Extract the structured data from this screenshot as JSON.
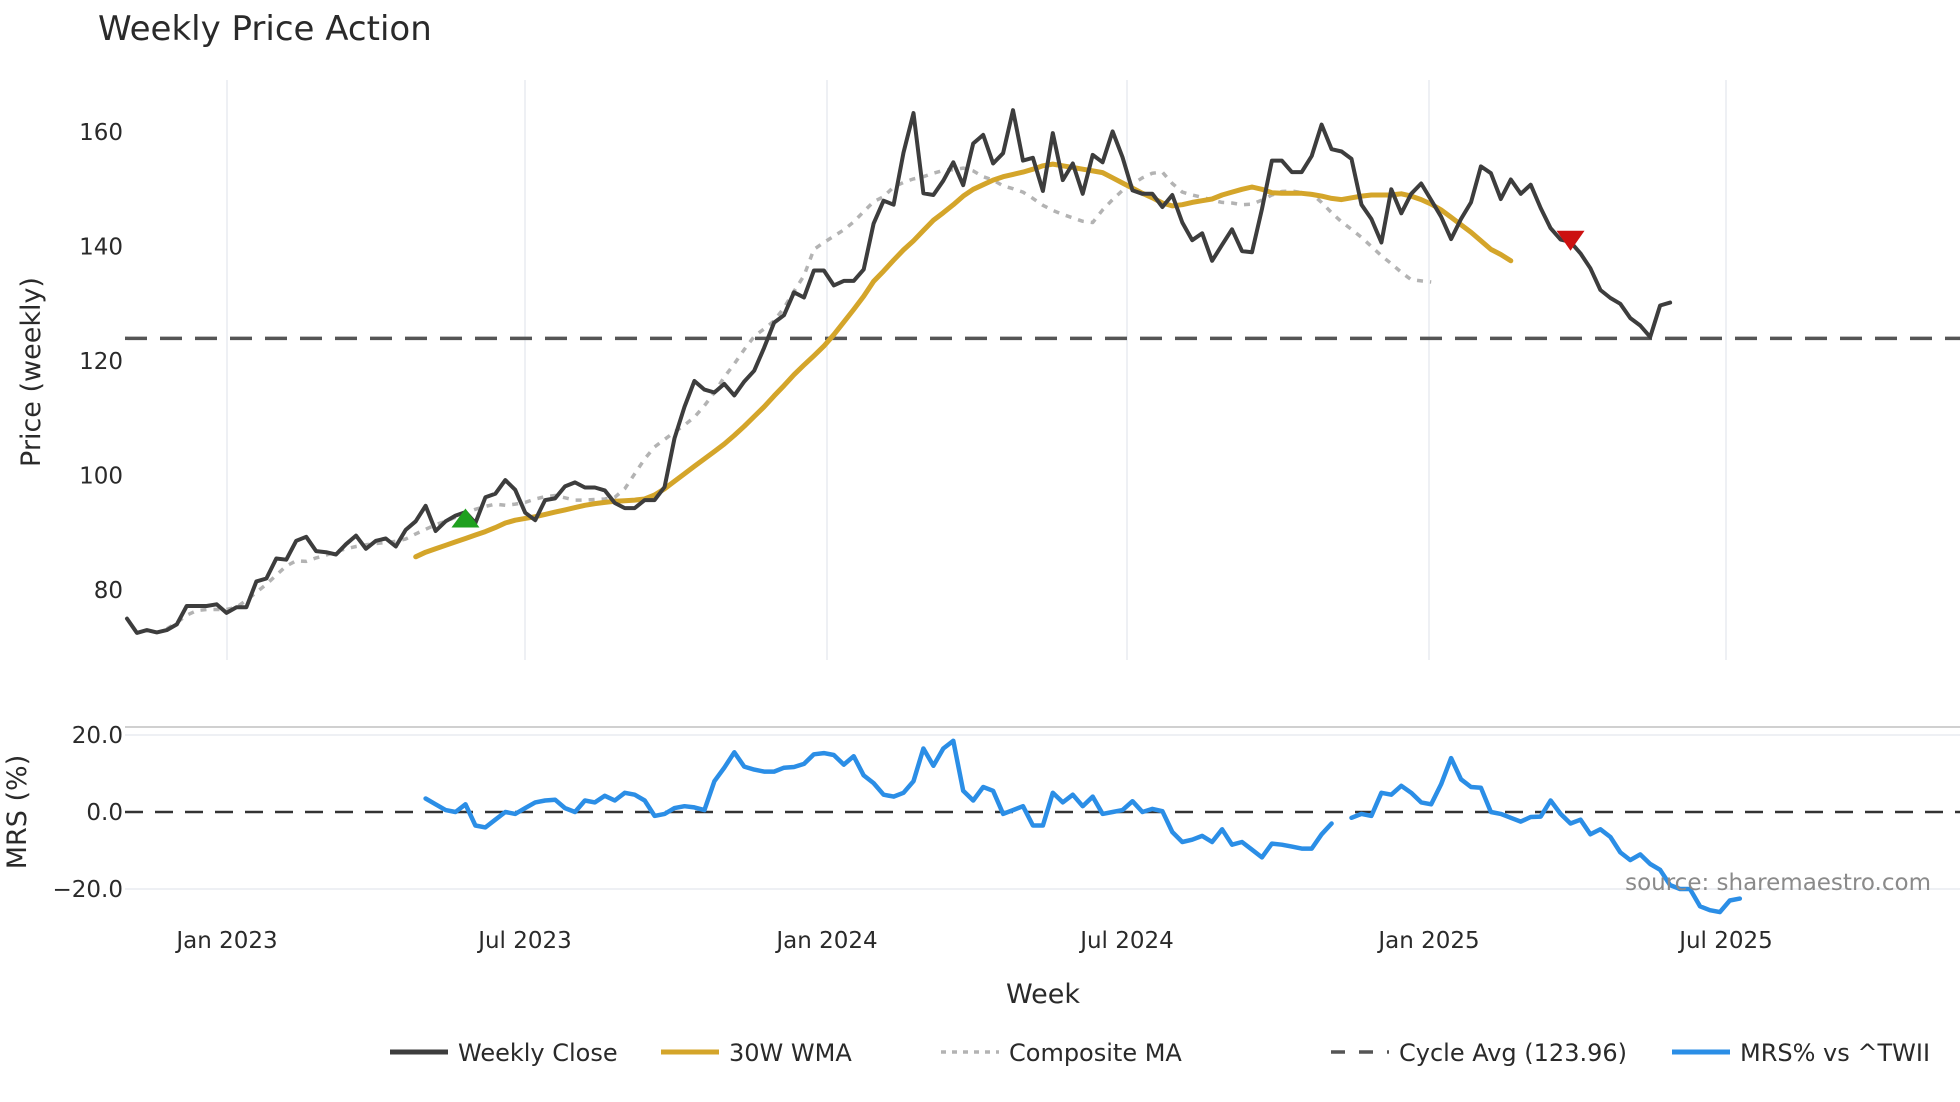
{
  "title": "Weekly Price Action",
  "source_label": "source: sharemaestro.com",
  "colors": {
    "close": "#3d3d3d",
    "wma": "#d4a52a",
    "composite": "#b3b3b3",
    "cycle": "#555555",
    "mrs": "#2b8ee6",
    "buy_marker": "#1fa01f",
    "sell_marker": "#cc1111",
    "grid": "#e8ecf0"
  },
  "legend": [
    {
      "key": "close",
      "label": "Weekly Close",
      "style": "solid"
    },
    {
      "key": "wma",
      "label": "30W WMA",
      "style": "solid"
    },
    {
      "key": "composite",
      "label": "Composite MA",
      "style": "dotted"
    },
    {
      "key": "cycle",
      "label": "Cycle Avg (123.96)",
      "style": "dashed"
    },
    {
      "key": "mrs",
      "label": "MRS% vs ^TWII",
      "style": "solid"
    }
  ],
  "chart_data": [
    {
      "type": "line",
      "title": "Weekly Price Action",
      "xlabel": "Week",
      "ylabel": "Price (weekly)",
      "ylim": [
        68,
        170
      ],
      "yticks": [
        80,
        100,
        120,
        140,
        160
      ],
      "xticks": [
        "Jan 2023",
        "Jul 2023",
        "Jan 2024",
        "Jul 2024",
        "Jan 2025",
        "Jul 2025"
      ],
      "grid": true,
      "reference_line": {
        "label": "Cycle Avg",
        "value": 123.96
      },
      "markers": [
        {
          "type": "buy",
          "shape": "triangle-up",
          "week_index": 34,
          "value": 92.5
        },
        {
          "type": "sell",
          "shape": "triangle-down",
          "week_index": 145,
          "value": 141
        }
      ],
      "series": [
        {
          "name": "Weekly Close",
          "start_index": 0,
          "values": [
            75,
            72.5,
            73,
            72.6,
            73,
            74,
            77.2,
            77.2,
            77.2,
            77.5,
            76,
            77,
            77,
            81.5,
            82,
            85.5,
            85.3,
            88.6,
            89.3,
            86.8,
            86.6,
            86.2,
            88,
            89.5,
            87.2,
            88.6,
            89,
            87.6,
            90.5,
            92,
            94.7,
            90.3,
            92,
            93,
            93.6,
            91.7,
            96.2,
            96.8,
            99.2,
            97.5,
            93.5,
            92.2,
            95.7,
            96,
            98.1,
            98.8,
            97.9,
            97.9,
            97.4,
            95.2,
            94.3,
            94.3,
            95.7,
            95.7,
            98,
            106.5,
            112,
            116.5,
            115,
            114.5,
            116,
            114,
            116.4,
            118.3,
            122.3,
            126.7,
            128,
            132,
            131.1,
            135.8,
            135.8,
            133.2,
            134,
            134,
            136,
            144,
            148,
            147.3,
            156.4,
            163.3,
            149.3,
            149,
            151.5,
            154.7,
            150.7,
            158,
            159.5,
            154.5,
            156.3,
            163.8,
            155,
            155.5,
            149.7,
            159.8,
            151.6,
            154.5,
            149.2,
            156,
            154.7,
            160.1,
            155.6,
            149.8,
            149.2,
            149.2,
            146.9,
            149,
            144.2,
            141.1,
            142.3,
            137.5,
            140.3,
            143,
            139.2,
            139,
            146.5,
            155,
            155,
            153,
            153,
            155.8,
            161.3,
            157,
            156.6,
            155.3,
            147.3,
            144.8,
            140.7,
            150,
            145.8,
            149.2,
            151,
            148.1,
            145.2,
            141.3,
            144.8,
            147.7,
            154,
            152.8,
            148.3,
            151.7,
            149.2,
            150.8,
            146.7,
            143.2,
            141.2,
            140.8,
            138.8,
            136.2,
            132.4,
            131,
            130,
            127.5,
            126.2,
            124.2,
            129.7,
            130.2
          ]
        },
        {
          "name": "30W WMA",
          "start_index": 29,
          "values": [
            85.8,
            86.6,
            87.2,
            87.8,
            88.4,
            89,
            89.6,
            90.2,
            90.9,
            91.7,
            92.2,
            92.5,
            92.8,
            93.2,
            93.6,
            94,
            94.4,
            94.8,
            95.1,
            95.3,
            95.5,
            95.6,
            95.7,
            95.9,
            96.6,
            97.7,
            99,
            100.3,
            101.6,
            102.9,
            104.2,
            105.5,
            107,
            108.6,
            110.3,
            112,
            113.9,
            115.7,
            117.6,
            119.3,
            120.9,
            122.6,
            124.6,
            126.8,
            129,
            131.3,
            133.9,
            135.7,
            137.6,
            139.4,
            141,
            142.8,
            144.6,
            145.9,
            147.3,
            148.8,
            150,
            150.8,
            151.6,
            152.2,
            152.6,
            153,
            153.5,
            154.1,
            154.4,
            154.1,
            153.8,
            153.5,
            153.2,
            152.9,
            152,
            151.1,
            150.2,
            149.3,
            148.5,
            147.6,
            147.1,
            147.3,
            147.7,
            148,
            148.3,
            149,
            149.5,
            150,
            150.4,
            150,
            149.4,
            149.3,
            149.3,
            149.3,
            149.1,
            148.8,
            148.4,
            148.2,
            148.5,
            148.8,
            149,
            149,
            149,
            149.2,
            148.8,
            148.2,
            147.4,
            146.4,
            145.1,
            143.8,
            142.5,
            141,
            139.5,
            138.6,
            137.5
          ]
        },
        {
          "name": "Composite MA",
          "start_index": 4,
          "values": [
            73.2,
            74.3,
            75.6,
            76.4,
            76.6,
            76.6,
            76.6,
            77,
            78.2,
            79.6,
            81,
            82.6,
            84.2,
            85.1,
            85,
            85.6,
            86.1,
            86.7,
            87.2,
            87.6,
            87.9,
            88.1,
            88.3,
            88.5,
            88.9,
            89.8,
            90.6,
            91.4,
            92,
            92.7,
            93.4,
            94.1,
            94.6,
            95,
            94.8,
            95,
            95.3,
            95.9,
            96.3,
            96.5,
            96.1,
            95.7,
            95.7,
            95.8,
            95.9,
            96.2,
            97.7,
            100.3,
            102.9,
            105,
            106.3,
            107.6,
            108.8,
            110.2,
            112.2,
            114.5,
            117.2,
            119.5,
            122,
            124.3,
            125.6,
            127,
            129.3,
            132.2,
            134.9,
            139.5,
            140.7,
            141.8,
            142.9,
            144.3,
            146.1,
            147.8,
            148.7,
            150.4,
            151.2,
            151.8,
            152.2,
            152.8,
            153.3,
            153.4,
            153.7,
            153.2,
            152.2,
            151.6,
            150.6,
            150.1,
            149.5,
            148.4,
            147.2,
            146.3,
            145.6,
            145,
            144.4,
            144.2,
            146.4,
            148.2,
            149.8,
            150.9,
            152,
            152.8,
            153,
            151,
            149.5,
            149,
            148.6,
            148.1,
            147.7,
            147.6,
            147.3,
            147.4,
            148.1,
            149,
            149.6,
            149.7,
            149.4,
            149.2,
            147.7,
            145.9,
            144.3,
            143,
            141.6,
            140,
            138.4,
            137,
            135.5,
            134.2,
            134,
            133.8
          ]
        },
        {
          "name": "Cycle Avg",
          "values": [
            123.96
          ]
        }
      ]
    },
    {
      "type": "line",
      "xlabel": "Week",
      "ylabel": "MRS (%)",
      "ylim": [
        -26,
        22
      ],
      "yticks": [
        -20.0,
        0.0,
        20.0
      ],
      "reference_line": {
        "value": 0.0
      },
      "series": [
        {
          "name": "MRS% vs ^TWII",
          "start_index": 30,
          "segments": [
            {
              "start_index": 30,
              "values": [
                3.5,
                2,
                0.5,
                0,
                2,
                -3.5,
                -4,
                -2,
                0,
                -0.5,
                1,
                2.5,
                3,
                3.2,
                1,
                0,
                3,
                2.5,
                4.2,
                3,
                5,
                4.5,
                3,
                -1,
                -0.5,
                1,
                1.5,
                1.2,
                0.5,
                8,
                11.5,
                15.5,
                11.8,
                11,
                10.5,
                10.5,
                11.5,
                11.7,
                12.5,
                15,
                15.3,
                14.8,
                12.3,
                14.5,
                9.5,
                7.5,
                4.5,
                4,
                5,
                8,
                16.5,
                12,
                16.5,
                18.5,
                5.5,
                3,
                6.5,
                5.5,
                -0.5,
                0.5,
                1.5,
                -3.5,
                -3.5,
                5,
                2.5,
                4.5,
                1.5,
                4,
                -0.5,
                0,
                0.5,
                2.8,
                0,
                0.8,
                0.2,
                -5.2,
                -7.8,
                -7.2,
                -6.2,
                -7.8,
                -4.5,
                -8.5,
                -7.8,
                -9.8,
                -11.8,
                -8.2,
                -8.5,
                -9,
                -9.5,
                -9.5,
                -5.8,
                -3
              ]
            },
            {
              "start_index": 123,
              "values": [
                -1.5,
                -0.5,
                -1,
                5,
                4.5,
                6.8,
                5,
                2.5,
                2,
                7.2,
                14,
                8.5,
                6.5,
                6.3,
                0,
                -0.5,
                -1.5,
                -2.5,
                -1.3,
                -1.2,
                3,
                -0.5,
                -3,
                -2,
                -5.8,
                -4.5,
                -6.5,
                -10.5,
                -12.5,
                -11,
                -13.5,
                -15,
                -19,
                -20,
                -20,
                -24.5,
                -25.5,
                -26,
                -23,
                -22.5
              ]
            }
          ]
        }
      ]
    }
  ]
}
